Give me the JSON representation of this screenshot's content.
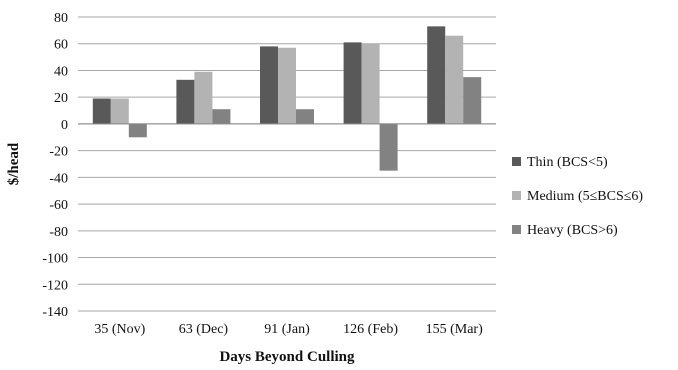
{
  "chart_data": {
    "type": "bar",
    "categories": [
      "35 (Nov)",
      "63 (Dec)",
      "91 (Jan)",
      "126 (Feb)",
      "155 (Mar)"
    ],
    "series": [
      {
        "name": "Thin (BCS<5)",
        "color": "#595959",
        "values": [
          19,
          33,
          58,
          61,
          73
        ]
      },
      {
        "name": "Medium (5≤BCS≤6)",
        "color": "#b3b3b3",
        "values": [
          19,
          39,
          57,
          60,
          66
        ]
      },
      {
        "name": "Heavy (BCS>6)",
        "color": "#828282",
        "values": [
          -10,
          11,
          11,
          -35,
          35
        ]
      }
    ],
    "xlabel": "Days Beyond Culling",
    "ylabel": "$/head",
    "ylim": [
      -140,
      80
    ],
    "yticks": [
      80,
      60,
      40,
      20,
      0,
      -20,
      -40,
      -60,
      -80,
      -100,
      -120,
      -140
    ],
    "grid": true,
    "legend_position": "right"
  }
}
